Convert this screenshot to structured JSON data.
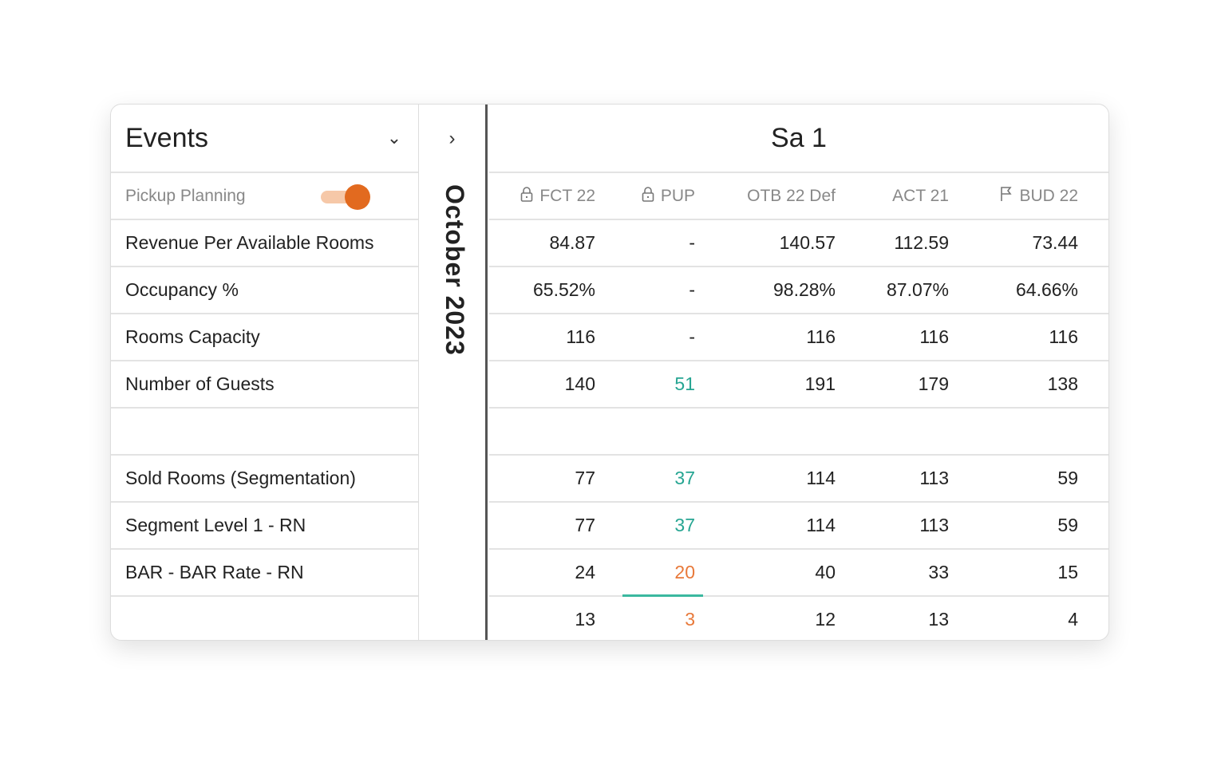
{
  "sidebar": {
    "title": "Events",
    "toggle_label": "Pickup Planning",
    "toggle_on": true,
    "rows": [
      "Revenue Per Available Rooms",
      "Occupancy %",
      "Rooms Capacity",
      "Number of Guests",
      "",
      "Sold Rooms (Segmentation)",
      "Segment Level 1 - RN",
      "BAR - BAR Rate - RN",
      ""
    ]
  },
  "month": "October 2023",
  "day": "Sa 1",
  "columns": [
    {
      "label": "FCT 22",
      "icon": "lock-icon"
    },
    {
      "label": "PUP",
      "icon": "lock-icon"
    },
    {
      "label": "OTB 22 Def",
      "icon": ""
    },
    {
      "label": "ACT 21",
      "icon": ""
    },
    {
      "label": "BUD 22",
      "icon": "flag-icon"
    }
  ],
  "rows": [
    [
      "84.87",
      "-",
      "140.57",
      "112.59",
      "73.44"
    ],
    [
      "65.52%",
      "-",
      "98.28%",
      "87.07%",
      "64.66%"
    ],
    [
      "116",
      "-",
      "116",
      "116",
      "116"
    ],
    [
      "140",
      "51",
      "191",
      "179",
      "138"
    ],
    [
      "",
      "",
      "",
      "",
      ""
    ],
    [
      "77",
      "37",
      "114",
      "113",
      "59"
    ],
    [
      "77",
      "37",
      "114",
      "113",
      "59"
    ],
    [
      "24",
      "20",
      "40",
      "33",
      "15"
    ],
    [
      "13",
      "3",
      "12",
      "13",
      "4"
    ]
  ],
  "colors": {
    "accent": "#e26a1f",
    "teal": "#26a592",
    "orange": "#e8793a"
  }
}
